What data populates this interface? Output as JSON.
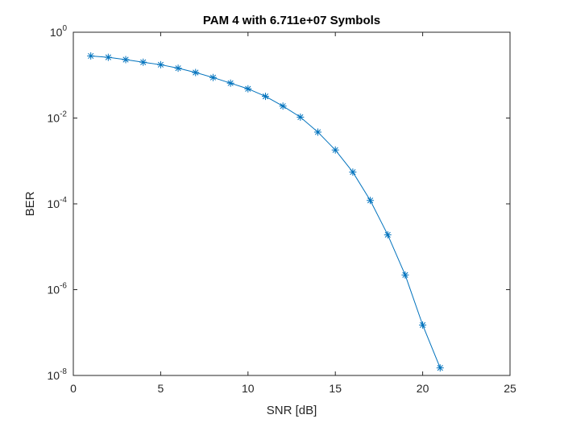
{
  "chart_data": {
    "type": "line",
    "title": "PAM 4 with 6.711e+07 Symbols",
    "xlabel": "SNR [dB]",
    "ylabel": "BER",
    "xlim": [
      0,
      25
    ],
    "ylim": [
      1e-08,
      1
    ],
    "yscale": "log",
    "grid": false,
    "legend": "none",
    "marker": "asterisk",
    "x_ticks": [
      0,
      5,
      10,
      15,
      20,
      25
    ],
    "y_ticks": [
      {
        "base": "10",
        "exp": "0",
        "value": 1
      },
      {
        "base": "10",
        "exp": "-2",
        "value": 0.01
      },
      {
        "base": "10",
        "exp": "-4",
        "value": 0.0001
      },
      {
        "base": "10",
        "exp": "-6",
        "value": 1e-06
      },
      {
        "base": "10",
        "exp": "-8",
        "value": 1e-08
      }
    ],
    "series": [
      {
        "color": "#0072bd",
        "x": [
          1,
          2,
          3,
          4,
          5,
          6,
          7,
          8,
          9,
          10,
          11,
          12,
          13,
          14,
          15,
          16,
          17,
          18,
          19,
          20,
          21
        ],
        "y": [
          0.28,
          0.26,
          0.23,
          0.2,
          0.175,
          0.145,
          0.115,
          0.088,
          0.065,
          0.048,
          0.032,
          0.019,
          0.0105,
          0.0047,
          0.0018,
          0.00055,
          0.00012,
          1.9e-05,
          2.2e-06,
          1.5e-07,
          1.5e-08
        ]
      }
    ]
  }
}
